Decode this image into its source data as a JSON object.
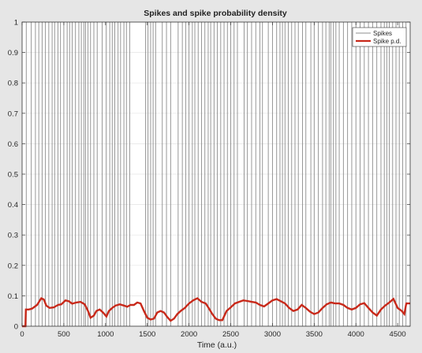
{
  "chart_data": {
    "type": "line",
    "title": "Spikes and spike probability density",
    "xlabel": "Time (a.u.)",
    "ylabel": "",
    "xlim": [
      0,
      4650
    ],
    "ylim": [
      0,
      1
    ],
    "x_ticks": [
      0,
      500,
      1000,
      1500,
      2000,
      2500,
      3000,
      3500,
      4000,
      4500
    ],
    "y_ticks": [
      0,
      0.1,
      0.2,
      0.3,
      0.4,
      0.5,
      0.6,
      0.7,
      0.8,
      0.9,
      1
    ],
    "grid": true,
    "legend_position": "top-right",
    "series": [
      {
        "name": "Spikes",
        "style": "vertical-lines",
        "color": "#8c8c8c",
        "height": 1,
        "x": [
          50,
          110,
          160,
          200,
          240,
          280,
          320,
          360,
          390,
          430,
          460,
          500,
          540,
          570,
          600,
          640,
          680,
          710,
          740,
          760,
          790,
          820,
          860,
          900,
          960,
          1010,
          1050,
          1080,
          1110,
          1150,
          1180,
          1220,
          1250,
          1290,
          1480,
          1510,
          1540,
          1570,
          1600,
          1680,
          1730,
          1780,
          1870,
          1920,
          1960,
          2000,
          2040,
          2070,
          2110,
          2150,
          2190,
          2230,
          2260,
          2300,
          2340,
          2380,
          2420,
          2460,
          2500,
          2540,
          2580,
          2660,
          2700,
          2750,
          2800,
          2850,
          2880,
          2950,
          3000,
          3050,
          3090,
          3120,
          3150,
          3190,
          3230,
          3270,
          3310,
          3360,
          3400,
          3460,
          3500,
          3550,
          3600,
          3640,
          3680,
          3700,
          3730,
          3760,
          3800,
          3850,
          3900,
          3950,
          4000,
          4050,
          4100,
          4150,
          4200,
          4250,
          4300,
          4340,
          4370,
          4400,
          4440,
          4480,
          4520,
          4560,
          4600
        ]
      },
      {
        "name": "Spike p.d.",
        "style": "line",
        "color": "#c8291a",
        "x": [
          0,
          40,
          45,
          80,
          120,
          180,
          230,
          260,
          290,
          330,
          380,
          430,
          470,
          520,
          560,
          600,
          650,
          700,
          750,
          790,
          820,
          860,
          890,
          930,
          970,
          1010,
          1040,
          1080,
          1120,
          1170,
          1220,
          1260,
          1300,
          1340,
          1380,
          1420,
          1460,
          1500,
          1540,
          1580,
          1620,
          1660,
          1700,
          1740,
          1780,
          1820,
          1860,
          1900,
          1950,
          2000,
          2050,
          2100,
          2150,
          2200,
          2240,
          2280,
          2320,
          2360,
          2400,
          2450,
          2500,
          2550,
          2600,
          2650,
          2700,
          2750,
          2800,
          2850,
          2900,
          2950,
          3000,
          3050,
          3100,
          3150,
          3200,
          3250,
          3300,
          3350,
          3400,
          3450,
          3500,
          3550,
          3600,
          3650,
          3700,
          3750,
          3800,
          3850,
          3900,
          3950,
          4000,
          4050,
          4100,
          4150,
          4200,
          4250,
          4300,
          4350,
          4400,
          4450,
          4500,
          4550,
          4580,
          4600,
          4605,
          4650
        ],
        "y": [
          0,
          0,
          0.055,
          0.055,
          0.058,
          0.07,
          0.092,
          0.088,
          0.068,
          0.06,
          0.062,
          0.07,
          0.072,
          0.085,
          0.082,
          0.074,
          0.078,
          0.08,
          0.072,
          0.05,
          0.028,
          0.035,
          0.05,
          0.055,
          0.045,
          0.032,
          0.05,
          0.06,
          0.068,
          0.072,
          0.068,
          0.064,
          0.07,
          0.07,
          0.078,
          0.075,
          0.05,
          0.028,
          0.022,
          0.025,
          0.045,
          0.05,
          0.045,
          0.03,
          0.018,
          0.025,
          0.04,
          0.05,
          0.06,
          0.075,
          0.085,
          0.092,
          0.08,
          0.075,
          0.058,
          0.04,
          0.025,
          0.02,
          0.02,
          0.05,
          0.062,
          0.075,
          0.08,
          0.085,
          0.083,
          0.08,
          0.078,
          0.07,
          0.065,
          0.075,
          0.085,
          0.089,
          0.082,
          0.075,
          0.06,
          0.05,
          0.055,
          0.07,
          0.06,
          0.048,
          0.04,
          0.045,
          0.06,
          0.072,
          0.078,
          0.075,
          0.075,
          0.07,
          0.06,
          0.055,
          0.06,
          0.072,
          0.076,
          0.06,
          0.045,
          0.035,
          0.055,
          0.068,
          0.078,
          0.09,
          0.06,
          0.05,
          0.04,
          0.07,
          0.075,
          0.075
        ]
      }
    ]
  }
}
